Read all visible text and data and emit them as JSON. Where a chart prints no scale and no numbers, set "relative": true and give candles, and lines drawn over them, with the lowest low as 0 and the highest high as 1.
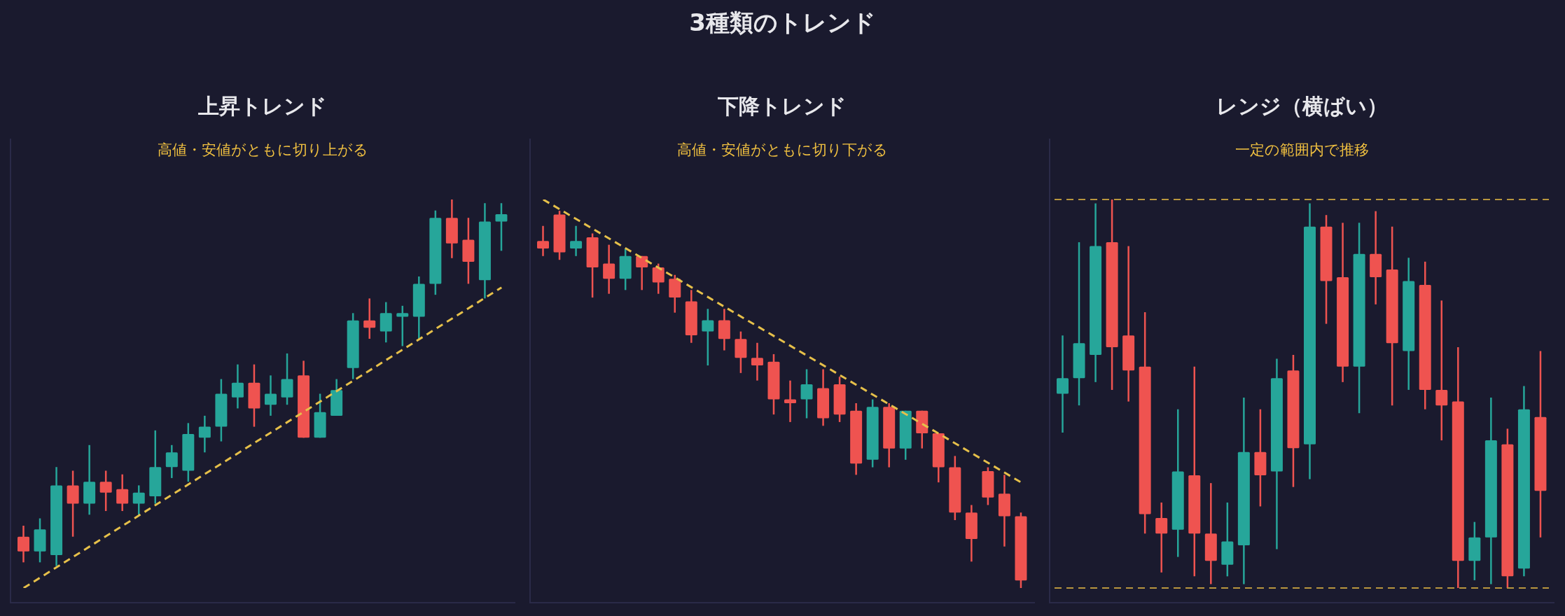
{
  "chart_data": [
    {
      "type": "candlestick",
      "title": "上昇トレンド",
      "subtitle": "高値・安値がともに切り上がる",
      "annotations": [
        "3種類のトレンド"
      ],
      "relative": true,
      "categories": [
        null,
        null,
        null,
        null,
        null,
        null,
        null,
        null,
        null,
        null,
        null,
        null,
        null,
        null,
        null,
        null,
        null,
        null,
        null,
        null,
        null,
        null,
        null,
        null,
        null,
        null,
        null,
        null,
        null,
        null
      ],
      "ohlc": [
        [
          0.08,
          0.11,
          0.01,
          0.04
        ],
        [
          0.04,
          0.13,
          0.01,
          0.1
        ],
        [
          0.03,
          0.27,
          0,
          0.22
        ],
        [
          0.22,
          0.26,
          0.08,
          0.17
        ],
        [
          0.17,
          0.33,
          0.14,
          0.23
        ],
        [
          0.23,
          0.26,
          0.15,
          0.2
        ],
        [
          0.21,
          0.25,
          0.15,
          0.17
        ],
        [
          0.17,
          0.22,
          0.14,
          0.2
        ],
        [
          0.19,
          0.37,
          0.17,
          0.27
        ],
        [
          0.27,
          0.33,
          0.24,
          0.31
        ],
        [
          0.26,
          0.39,
          0.23,
          0.36
        ],
        [
          0.35,
          0.41,
          0.31,
          0.38
        ],
        [
          0.38,
          0.51,
          0.34,
          0.47
        ],
        [
          0.46,
          0.55,
          0.43,
          0.5
        ],
        [
          0.5,
          0.55,
          0.38,
          0.43
        ],
        [
          0.44,
          0.52,
          0.41,
          0.47
        ],
        [
          0.46,
          0.58,
          0.44,
          0.51
        ],
        [
          0.52,
          0.56,
          0.35,
          0.35
        ],
        [
          0.35,
          0.47,
          0.35,
          0.42
        ],
        [
          0.41,
          0.51,
          0.41,
          0.48
        ],
        [
          0.54,
          0.69,
          0.51,
          0.67
        ],
        [
          0.67,
          0.73,
          0.62,
          0.65
        ],
        [
          0.64,
          0.72,
          0.61,
          0.69
        ],
        [
          0.68,
          0.71,
          0.6,
          0.69
        ],
        [
          0.68,
          0.79,
          0.62,
          0.77
        ],
        [
          0.77,
          0.97,
          0.74,
          0.95
        ],
        [
          0.95,
          1,
          0.84,
          0.88
        ],
        [
          0.89,
          0.95,
          0.77,
          0.83
        ],
        [
          0.78,
          0.99,
          0.73,
          0.94
        ],
        [
          0.94,
          0.99,
          0.86,
          0.96
        ]
      ],
      "colors": [
        "#ef5350",
        "#26a69a",
        "#26a69a",
        "#ef5350",
        "#26a69a",
        "#ef5350",
        "#ef5350",
        "#26a69a",
        "#26a69a",
        "#26a69a",
        "#26a69a",
        "#26a69a",
        "#26a69a",
        "#26a69a",
        "#ef5350",
        "#26a69a",
        "#26a69a",
        "#ef5350",
        "#26a69a",
        "#26a69a",
        "#26a69a",
        "#ef5350",
        "#26a69a",
        "#26a69a",
        "#26a69a",
        "#26a69a",
        "#ef5350",
        "#ef5350",
        "#26a69a",
        "#26a69a"
      ],
      "series": [
        {
          "type": "line",
          "color": "#e6c04a",
          "line_style": "dashed",
          "values": [
            -0.06,
            null,
            null,
            null,
            null,
            null,
            null,
            null,
            null,
            null,
            null,
            null,
            null,
            null,
            null,
            null,
            null,
            null,
            null,
            null,
            null,
            null,
            null,
            null,
            null,
            null,
            null,
            null,
            null,
            0.76
          ]
        }
      ]
    },
    {
      "type": "candlestick",
      "title": "下降トレンド",
      "subtitle": "高値・安値がともに切り下がる",
      "relative": true,
      "categories": [
        null,
        null,
        null,
        null,
        null,
        null,
        null,
        null,
        null,
        null,
        null,
        null,
        null,
        null,
        null,
        null,
        null,
        null,
        null,
        null,
        null,
        null,
        null,
        null,
        null,
        null,
        null,
        null,
        null,
        null
      ],
      "ohlc": [
        [
          0.92,
          0.96,
          0.88,
          0.9
        ],
        [
          0.99,
          1,
          0.87,
          0.89
        ],
        [
          0.9,
          0.96,
          0.88,
          0.92
        ],
        [
          0.93,
          0.94,
          0.77,
          0.85
        ],
        [
          0.86,
          0.91,
          0.78,
          0.82
        ],
        [
          0.82,
          0.9,
          0.79,
          0.88
        ],
        [
          0.88,
          0.88,
          0.79,
          0.85
        ],
        [
          0.85,
          0.86,
          0.78,
          0.81
        ],
        [
          0.82,
          0.83,
          0.73,
          0.77
        ],
        [
          0.76,
          0.79,
          0.65,
          0.67
        ],
        [
          0.68,
          0.74,
          0.59,
          0.71
        ],
        [
          0.71,
          0.74,
          0.63,
          0.66
        ],
        [
          0.66,
          0.68,
          0.57,
          0.61
        ],
        [
          0.61,
          0.65,
          0.55,
          0.59
        ],
        [
          0.6,
          0.62,
          0.46,
          0.5
        ],
        [
          0.5,
          0.55,
          0.44,
          0.49
        ],
        [
          0.5,
          0.58,
          0.45,
          0.54
        ],
        [
          0.53,
          0.58,
          0.43,
          0.45
        ],
        [
          0.54,
          0.56,
          0.44,
          0.46
        ],
        [
          0.47,
          0.49,
          0.3,
          0.33
        ],
        [
          0.34,
          0.5,
          0.32,
          0.48
        ],
        [
          0.48,
          0.49,
          0.32,
          0.37
        ],
        [
          0.37,
          0.47,
          0.34,
          0.47
        ],
        [
          0.47,
          0.47,
          0.37,
          0.41
        ],
        [
          0.41,
          0.41,
          0.28,
          0.32
        ],
        [
          0.32,
          0.35,
          0.18,
          0.2
        ],
        [
          0.2,
          0.22,
          0.07,
          0.13
        ],
        [
          0.31,
          0.32,
          0.22,
          0.24
        ],
        [
          0.25,
          0.3,
          0.11,
          0.19
        ],
        [
          0.19,
          0.2,
          0,
          0.02
        ]
      ],
      "colors": [
        "#ef5350",
        "#ef5350",
        "#26a69a",
        "#ef5350",
        "#ef5350",
        "#26a69a",
        "#ef5350",
        "#ef5350",
        "#ef5350",
        "#ef5350",
        "#26a69a",
        "#ef5350",
        "#ef5350",
        "#ef5350",
        "#ef5350",
        "#ef5350",
        "#26a69a",
        "#ef5350",
        "#ef5350",
        "#ef5350",
        "#26a69a",
        "#ef5350",
        "#26a69a",
        "#ef5350",
        "#ef5350",
        "#ef5350",
        "#ef5350",
        "#ef5350",
        "#ef5350",
        "#ef5350"
      ],
      "series": [
        {
          "type": "line",
          "color": "#e6c04a",
          "line_style": "dashed",
          "values": [
            1.03,
            null,
            null,
            null,
            null,
            null,
            null,
            null,
            null,
            null,
            null,
            null,
            null,
            null,
            null,
            null,
            null,
            null,
            null,
            null,
            null,
            null,
            null,
            null,
            null,
            null,
            null,
            null,
            null,
            0.28
          ]
        }
      ]
    },
    {
      "type": "candlestick",
      "title": "レンジ（横ばい）",
      "subtitle": "一定の範囲内で推移",
      "relative": true,
      "categories": [
        null,
        null,
        null,
        null,
        null,
        null,
        null,
        null,
        null,
        null,
        null,
        null,
        null,
        null,
        null,
        null,
        null,
        null,
        null,
        null,
        null,
        null,
        null,
        null,
        null,
        null,
        null,
        null,
        null,
        null
      ],
      "ohlc": [
        [
          0.5,
          0.65,
          0.4,
          0.54
        ],
        [
          0.54,
          0.89,
          0.47,
          0.63
        ],
        [
          0.6,
          0.99,
          0.53,
          0.88
        ],
        [
          0.89,
          1,
          0.51,
          0.62
        ],
        [
          0.65,
          0.88,
          0.48,
          0.56
        ],
        [
          0.57,
          0.71,
          0.14,
          0.19
        ],
        [
          0.18,
          0.22,
          0.04,
          0.14
        ],
        [
          0.15,
          0.46,
          0.08,
          0.3
        ],
        [
          0.29,
          0.57,
          0.03,
          0.14
        ],
        [
          0.14,
          0.27,
          0.01,
          0.07
        ],
        [
          0.06,
          0.22,
          0.03,
          0.12
        ],
        [
          0.11,
          0.49,
          0.01,
          0.35
        ],
        [
          0.35,
          0.46,
          0.21,
          0.29
        ],
        [
          0.3,
          0.59,
          0.1,
          0.54
        ],
        [
          0.56,
          0.6,
          0.26,
          0.36
        ],
        [
          0.37,
          0.99,
          0.28,
          0.93
        ],
        [
          0.93,
          0.96,
          0.68,
          0.79
        ],
        [
          0.8,
          0.94,
          0.53,
          0.57
        ],
        [
          0.57,
          0.94,
          0.45,
          0.86
        ],
        [
          0.86,
          0.97,
          0.73,
          0.8
        ],
        [
          0.82,
          0.93,
          0.47,
          0.63
        ],
        [
          0.61,
          0.85,
          0.51,
          0.79
        ],
        [
          0.78,
          0.84,
          0.46,
          0.51
        ],
        [
          0.51,
          0.74,
          0.38,
          0.47
        ],
        [
          0.48,
          0.62,
          0,
          0.07
        ],
        [
          0.07,
          0.17,
          0.02,
          0.13
        ],
        [
          0.13,
          0.49,
          0.01,
          0.38
        ],
        [
          0.37,
          0.41,
          0,
          0.03
        ],
        [
          0.05,
          0.52,
          0.03,
          0.46
        ],
        [
          0.44,
          0.61,
          0.13,
          0.25
        ]
      ],
      "colors": [
        "#26a69a",
        "#26a69a",
        "#26a69a",
        "#ef5350",
        "#ef5350",
        "#ef5350",
        "#ef5350",
        "#26a69a",
        "#ef5350",
        "#ef5350",
        "#26a69a",
        "#26a69a",
        "#ef5350",
        "#26a69a",
        "#ef5350",
        "#26a69a",
        "#ef5350",
        "#ef5350",
        "#26a69a",
        "#ef5350",
        "#ef5350",
        "#26a69a",
        "#ef5350",
        "#ef5350",
        "#ef5350",
        "#26a69a",
        "#26a69a",
        "#ef5350",
        "#26a69a",
        "#ef5350"
      ],
      "ref_lines": [
        {
          "axis": "y",
          "value": 1,
          "color": "#b8963e",
          "line_style": "dashed"
        },
        {
          "axis": "y",
          "value": 0,
          "color": "#b8963e",
          "line_style": "dashed"
        }
      ]
    }
  ]
}
